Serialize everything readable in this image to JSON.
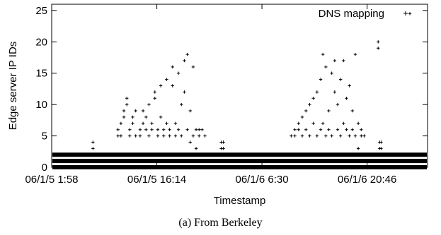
{
  "chart_data": {
    "type": "scatter",
    "title": "",
    "xlabel": "Timestamp",
    "ylabel": "Edge server IP IDs",
    "x_ticks": [
      "06/1/5 1:58",
      "06/1/5 16:14",
      "06/1/6 6:30",
      "06/1/6 20:46"
    ],
    "x_tick_values": [
      0.0,
      14.27,
      28.53,
      42.8
    ],
    "x_unit": "hours since 06/1/5 1:58",
    "xlim": [
      0.0,
      51.0
    ],
    "y_ticks": [
      0,
      5,
      10,
      15,
      20,
      25
    ],
    "ylim": [
      0,
      26
    ],
    "grid": false,
    "legend_position": "top-right",
    "series": [
      {
        "name": "DNS mapping",
        "marker": "+",
        "color": "#000000",
        "baseline_ids": [
          0,
          1,
          2
        ],
        "baseline_x_range": [
          0.0,
          51.0
        ],
        "points": [
          [
            5.6,
            3
          ],
          [
            5.6,
            4
          ],
          [
            9.0,
            5
          ],
          [
            9.0,
            6
          ],
          [
            9.4,
            5
          ],
          [
            9.4,
            7
          ],
          [
            9.8,
            8
          ],
          [
            9.8,
            9
          ],
          [
            10.2,
            10
          ],
          [
            10.2,
            11
          ],
          [
            10.6,
            5
          ],
          [
            10.6,
            6
          ],
          [
            11.0,
            7
          ],
          [
            11.0,
            8
          ],
          [
            11.4,
            5
          ],
          [
            11.4,
            9
          ],
          [
            12.0,
            5
          ],
          [
            12.0,
            6
          ],
          [
            12.4,
            7
          ],
          [
            12.4,
            9
          ],
          [
            12.8,
            6
          ],
          [
            12.8,
            8
          ],
          [
            13.2,
            5
          ],
          [
            13.2,
            10
          ],
          [
            13.6,
            6
          ],
          [
            13.6,
            7
          ],
          [
            14.0,
            11
          ],
          [
            14.0,
            12
          ],
          [
            14.4,
            5
          ],
          [
            14.4,
            6
          ],
          [
            14.8,
            8
          ],
          [
            14.8,
            13
          ],
          [
            15.2,
            5
          ],
          [
            15.2,
            6
          ],
          [
            15.6,
            7
          ],
          [
            15.6,
            14
          ],
          [
            16.0,
            5
          ],
          [
            16.0,
            6
          ],
          [
            16.4,
            13
          ],
          [
            16.4,
            16
          ],
          [
            16.8,
            5
          ],
          [
            16.8,
            7
          ],
          [
            17.2,
            6
          ],
          [
            17.2,
            15
          ],
          [
            17.6,
            5
          ],
          [
            17.6,
            10
          ],
          [
            18.0,
            12
          ],
          [
            18.0,
            17
          ],
          [
            18.4,
            6
          ],
          [
            18.4,
            18
          ],
          [
            18.8,
            4
          ],
          [
            18.8,
            9
          ],
          [
            19.2,
            5
          ],
          [
            19.2,
            16
          ],
          [
            19.6,
            3
          ],
          [
            19.6,
            6
          ],
          [
            20.0,
            5
          ],
          [
            20.0,
            6
          ],
          [
            20.4,
            6
          ],
          [
            20.8,
            5
          ],
          [
            23.0,
            3
          ],
          [
            23.0,
            4
          ],
          [
            23.3,
            3
          ],
          [
            23.3,
            4
          ],
          [
            32.5,
            5
          ],
          [
            33.0,
            5
          ],
          [
            33.0,
            6
          ],
          [
            33.5,
            6
          ],
          [
            33.5,
            7
          ],
          [
            34.0,
            5
          ],
          [
            34.0,
            8
          ],
          [
            34.5,
            6
          ],
          [
            34.5,
            9
          ],
          [
            35.0,
            5
          ],
          [
            35.0,
            10
          ],
          [
            35.5,
            7
          ],
          [
            35.5,
            11
          ],
          [
            36.0,
            5
          ],
          [
            36.0,
            12
          ],
          [
            36.5,
            6
          ],
          [
            36.5,
            14
          ],
          [
            36.8,
            7
          ],
          [
            36.8,
            18
          ],
          [
            37.2,
            5
          ],
          [
            37.2,
            16
          ],
          [
            37.6,
            6
          ],
          [
            37.6,
            9
          ],
          [
            38.0,
            5
          ],
          [
            38.0,
            15
          ],
          [
            38.4,
            17
          ],
          [
            38.4,
            12
          ],
          [
            38.8,
            6
          ],
          [
            38.8,
            10
          ],
          [
            39.2,
            5
          ],
          [
            39.2,
            14
          ],
          [
            39.6,
            7
          ],
          [
            39.6,
            17
          ],
          [
            40.0,
            6
          ],
          [
            40.0,
            11
          ],
          [
            40.4,
            5
          ],
          [
            40.4,
            13
          ],
          [
            40.8,
            6
          ],
          [
            40.8,
            9
          ],
          [
            41.2,
            5
          ],
          [
            41.2,
            18
          ],
          [
            41.6,
            3
          ],
          [
            41.6,
            7
          ],
          [
            42.0,
            5
          ],
          [
            42.0,
            6
          ],
          [
            42.4,
            5
          ],
          [
            44.3,
            20
          ],
          [
            44.3,
            19
          ],
          [
            44.5,
            3
          ],
          [
            44.5,
            4
          ],
          [
            44.7,
            3
          ],
          [
            44.7,
            4
          ],
          [
            48.6,
            24.5
          ]
        ]
      }
    ]
  },
  "caption": "(a) From Berkeley"
}
